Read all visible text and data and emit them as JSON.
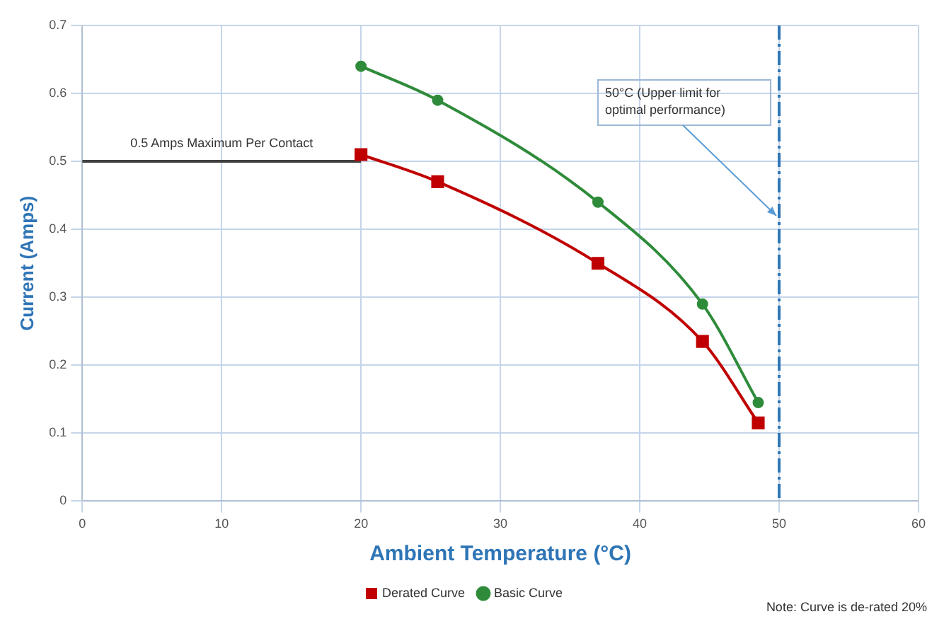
{
  "chart_data": {
    "type": "line",
    "xlabel": "Ambient Temperature (°C)",
    "ylabel": "Current (Amps)",
    "xlim": [
      0,
      60
    ],
    "xticks": [
      0,
      10,
      20,
      30,
      40,
      50,
      60
    ],
    "ylim": [
      0,
      0.7
    ],
    "yticks": [
      0,
      0.1,
      0.2,
      0.3,
      0.4,
      0.5,
      0.6,
      0.7
    ],
    "grid": true,
    "legend": "bottom",
    "series": [
      {
        "name": "Derated Curve",
        "color": "#c00000",
        "marker": "square",
        "x": [
          20,
          25.5,
          37,
          44.5,
          48.5
        ],
        "values": [
          0.51,
          0.47,
          0.35,
          0.235,
          0.115
        ]
      },
      {
        "name": "Basic Curve",
        "color": "#2e8b3a",
        "marker": "circle",
        "x": [
          20,
          25.5,
          37,
          44.5,
          48.5
        ],
        "values": [
          0.64,
          0.59,
          0.44,
          0.29,
          0.145
        ]
      },
      {
        "color": "#404040",
        "marker": "none",
        "x": [
          0,
          20
        ],
        "values": [
          0.5,
          0.5
        ]
      }
    ],
    "ref_lines": [
      {
        "axis": "x",
        "value": 50,
        "color": "#2e75b6",
        "line_style": "dashed"
      }
    ],
    "annotations": [
      {
        "text": "0.5 Amps Maximum Per Contact",
        "x": 10,
        "y": 0.5
      },
      {
        "text": "50°C (Upper limit for optimal performance)",
        "x": 50,
        "y": 0.42
      },
      "Note: Curve is de-rated 20%"
    ]
  }
}
